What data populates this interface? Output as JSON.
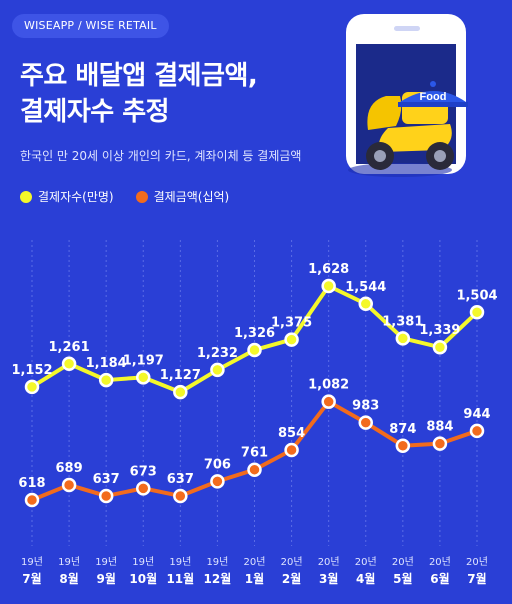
{
  "source": "WISEAPP / WISE RETAIL",
  "title_line1": "주요 배달앱 결제금액,",
  "title_line2": "결제자수 추정",
  "subtitle": "한국인 만 20세 이상 개인의 카드, 계좌이체 등 결제금액",
  "illustration": {
    "badge": "Food"
  },
  "legend": [
    {
      "label": "결제자수(만명)",
      "color": "#f4f82a"
    },
    {
      "label": "결제금액(십억)",
      "color": "#f26b1d"
    }
  ],
  "chart_data": {
    "type": "line",
    "categories": [
      {
        "year": "19년",
        "month": "7월"
      },
      {
        "year": "19년",
        "month": "8월"
      },
      {
        "year": "19년",
        "month": "9월"
      },
      {
        "year": "19년",
        "month": "10월"
      },
      {
        "year": "19년",
        "month": "11월"
      },
      {
        "year": "19년",
        "month": "12월"
      },
      {
        "year": "20년",
        "month": "1월"
      },
      {
        "year": "20년",
        "month": "2월"
      },
      {
        "year": "20년",
        "month": "3월"
      },
      {
        "year": "20년",
        "month": "4월"
      },
      {
        "year": "20년",
        "month": "5월"
      },
      {
        "year": "20년",
        "month": "6월"
      },
      {
        "year": "20년",
        "month": "7월"
      }
    ],
    "series": [
      {
        "name": "결제자수(만명)",
        "color": "#f4f82a",
        "values": [
          1152,
          1261,
          1184,
          1197,
          1127,
          1232,
          1326,
          1375,
          1628,
          1544,
          1381,
          1339,
          1504
        ],
        "labels": [
          "1,152",
          "1,261",
          "1,184",
          "1,197",
          "1,127",
          "1,232",
          "1,326",
          "1,375",
          "1,628",
          "1,544",
          "1,381",
          "1,339",
          "1,504"
        ]
      },
      {
        "name": "결제금액(십억)",
        "color": "#f26b1d",
        "values": [
          618,
          689,
          637,
          673,
          637,
          706,
          761,
          854,
          1082,
          983,
          874,
          884,
          944
        ],
        "labels": [
          "618",
          "689",
          "637",
          "673",
          "637",
          "706",
          "761",
          "854",
          "1,082",
          "983",
          "874",
          "884",
          "944"
        ]
      }
    ]
  }
}
